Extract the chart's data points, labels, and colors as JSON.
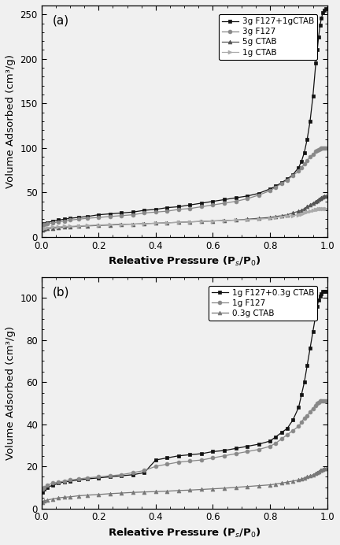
{
  "panel_a": {
    "label": "(a)",
    "ylabel": "Volume Adsorbed (cm³/g)",
    "xlabel": "Releative Pressure (P$_s$/P$_0$)",
    "ylim": [
      0,
      260
    ],
    "yticks": [
      0,
      50,
      100,
      150,
      200,
      250
    ],
    "xlim": [
      0.0,
      1.0
    ],
    "xticks": [
      0.0,
      0.2,
      0.4,
      0.6,
      0.8,
      1.0
    ],
    "series": [
      {
        "label": "3g F127+1gCTAB",
        "color": "#111111",
        "marker": "s",
        "markersize": 3.5,
        "linewidth": 0.9,
        "x": [
          0.005,
          0.01,
          0.02,
          0.04,
          0.06,
          0.08,
          0.1,
          0.13,
          0.16,
          0.2,
          0.24,
          0.28,
          0.32,
          0.36,
          0.4,
          0.44,
          0.48,
          0.52,
          0.56,
          0.6,
          0.64,
          0.68,
          0.72,
          0.76,
          0.8,
          0.82,
          0.84,
          0.86,
          0.88,
          0.9,
          0.91,
          0.92,
          0.93,
          0.94,
          0.95,
          0.96,
          0.965,
          0.97,
          0.975,
          0.98,
          0.985,
          0.99,
          0.995
        ],
        "y": [
          14,
          15,
          16,
          18,
          19,
          20,
          21,
          22,
          23,
          25,
          26,
          27,
          28,
          30,
          31,
          33,
          34,
          36,
          38,
          40,
          42,
          44,
          46,
          49,
          54,
          57,
          61,
          65,
          70,
          78,
          85,
          95,
          110,
          130,
          158,
          195,
          210,
          225,
          238,
          246,
          252,
          255,
          256
        ]
      },
      {
        "label": "3g F127",
        "color": "#888888",
        "marker": "o",
        "markersize": 3.5,
        "linewidth": 0.9,
        "x": [
          0.005,
          0.01,
          0.02,
          0.04,
          0.06,
          0.08,
          0.1,
          0.13,
          0.16,
          0.2,
          0.24,
          0.28,
          0.32,
          0.36,
          0.4,
          0.44,
          0.48,
          0.52,
          0.56,
          0.6,
          0.64,
          0.68,
          0.72,
          0.76,
          0.8,
          0.82,
          0.84,
          0.86,
          0.88,
          0.9,
          0.91,
          0.92,
          0.93,
          0.94,
          0.95,
          0.96,
          0.965,
          0.97,
          0.975,
          0.98,
          0.985,
          0.99,
          0.995
        ],
        "y": [
          13,
          14,
          15,
          16,
          17,
          18,
          19,
          20,
          21,
          22,
          23,
          24,
          25,
          27,
          28,
          29,
          31,
          32,
          34,
          36,
          38,
          40,
          43,
          47,
          52,
          56,
          60,
          64,
          69,
          74,
          78,
          82,
          86,
          90,
          93,
          96,
          97,
          98,
          99,
          100,
          100,
          100,
          100
        ]
      },
      {
        "label": "5g CTAB",
        "color": "#555555",
        "marker": "^",
        "markersize": 3.5,
        "linewidth": 0.9,
        "x": [
          0.005,
          0.01,
          0.02,
          0.04,
          0.06,
          0.08,
          0.1,
          0.13,
          0.16,
          0.2,
          0.24,
          0.28,
          0.32,
          0.36,
          0.4,
          0.44,
          0.48,
          0.52,
          0.56,
          0.6,
          0.64,
          0.68,
          0.72,
          0.76,
          0.8,
          0.82,
          0.84,
          0.86,
          0.88,
          0.9,
          0.91,
          0.92,
          0.93,
          0.94,
          0.95,
          0.96,
          0.965,
          0.97,
          0.975,
          0.98,
          0.985,
          0.99,
          0.995
        ],
        "y": [
          8,
          9,
          9.5,
          10,
          10.5,
          11,
          11.5,
          12,
          12.5,
          13,
          13.5,
          14,
          14.5,
          15,
          15.5,
          16,
          16.5,
          17,
          17.5,
          18,
          18.5,
          19,
          20,
          21,
          22,
          23,
          24,
          25,
          27,
          29,
          30,
          32,
          34,
          36,
          38,
          40,
          41,
          42,
          43,
          44,
          45,
          46,
          46
        ]
      },
      {
        "label": "1g CTAB",
        "color": "#aaaaaa",
        "marker": ">",
        "markersize": 3.5,
        "linewidth": 0.9,
        "x": [
          0.005,
          0.01,
          0.02,
          0.04,
          0.06,
          0.08,
          0.1,
          0.13,
          0.16,
          0.2,
          0.24,
          0.28,
          0.32,
          0.36,
          0.4,
          0.44,
          0.48,
          0.52,
          0.56,
          0.6,
          0.64,
          0.68,
          0.72,
          0.76,
          0.8,
          0.82,
          0.84,
          0.86,
          0.88,
          0.9,
          0.91,
          0.92,
          0.93,
          0.94,
          0.95,
          0.96,
          0.965,
          0.97,
          0.975,
          0.98,
          0.985,
          0.99,
          0.995
        ],
        "y": [
          9,
          10,
          10.5,
          11,
          11.5,
          12,
          12,
          12.5,
          13,
          13.5,
          14,
          14.5,
          14.5,
          15,
          15.5,
          16,
          16.5,
          17,
          17.5,
          18,
          18.5,
          19,
          19.5,
          20,
          21,
          22,
          23,
          23.5,
          24,
          25,
          26,
          27,
          28,
          29,
          30,
          30.5,
          31,
          31.5,
          31.5,
          32,
          32,
          32,
          32
        ]
      }
    ]
  },
  "panel_b": {
    "label": "(b)",
    "ylabel": "Volume Adsorbed (cm³/g)",
    "xlabel": "Releative Pressure (P$_s$/P$_0$)",
    "ylim": [
      0,
      110
    ],
    "yticks": [
      0,
      20,
      40,
      60,
      80,
      100
    ],
    "xlim": [
      0.0,
      1.0
    ],
    "xticks": [
      0.0,
      0.2,
      0.4,
      0.6,
      0.8,
      1.0
    ],
    "series": [
      {
        "label": "1g F127+0.3g CTAB",
        "color": "#111111",
        "marker": "s",
        "markersize": 3.5,
        "linewidth": 0.9,
        "x": [
          0.005,
          0.01,
          0.02,
          0.04,
          0.06,
          0.08,
          0.1,
          0.13,
          0.16,
          0.2,
          0.24,
          0.28,
          0.32,
          0.36,
          0.4,
          0.44,
          0.48,
          0.52,
          0.56,
          0.6,
          0.64,
          0.68,
          0.72,
          0.76,
          0.8,
          0.82,
          0.84,
          0.86,
          0.88,
          0.9,
          0.91,
          0.92,
          0.93,
          0.94,
          0.95,
          0.96,
          0.965,
          0.97,
          0.975,
          0.98,
          0.985,
          0.99,
          0.995
        ],
        "y": [
          7.5,
          9,
          10,
          11,
          12,
          12.5,
          13,
          13.5,
          14,
          14.5,
          15,
          15.5,
          16,
          17,
          23,
          24,
          25,
          25.5,
          26,
          27,
          27.5,
          28.5,
          29.5,
          30.5,
          32,
          34,
          36,
          38,
          42,
          48,
          54,
          60,
          68,
          76,
          84,
          92,
          96,
          99,
          101,
          102,
          103,
          103,
          103
        ]
      },
      {
        "label": "1g F127",
        "color": "#888888",
        "marker": "o",
        "markersize": 3.5,
        "linewidth": 0.9,
        "x": [
          0.005,
          0.01,
          0.02,
          0.04,
          0.06,
          0.08,
          0.1,
          0.13,
          0.16,
          0.2,
          0.24,
          0.28,
          0.32,
          0.36,
          0.4,
          0.44,
          0.48,
          0.52,
          0.56,
          0.6,
          0.64,
          0.68,
          0.72,
          0.76,
          0.8,
          0.82,
          0.84,
          0.86,
          0.88,
          0.9,
          0.91,
          0.92,
          0.93,
          0.94,
          0.95,
          0.96,
          0.965,
          0.97,
          0.975,
          0.98,
          0.985,
          0.99,
          0.995
        ],
        "y": [
          9,
          10,
          11,
          12,
          12.5,
          13,
          13.5,
          14,
          14.5,
          15,
          15.5,
          16,
          17,
          18,
          20,
          21,
          22,
          22.5,
          23,
          24,
          25,
          26,
          27,
          28,
          29.5,
          31,
          33,
          35,
          37,
          39,
          41,
          43,
          44,
          46,
          47.5,
          49,
          50,
          50.5,
          51,
          51,
          51,
          51,
          51
        ]
      },
      {
        "label": "0.3g CTAB",
        "color": "#777777",
        "marker": "^",
        "markersize": 3.5,
        "linewidth": 0.9,
        "x": [
          0.005,
          0.01,
          0.02,
          0.04,
          0.06,
          0.08,
          0.1,
          0.13,
          0.16,
          0.2,
          0.24,
          0.28,
          0.32,
          0.36,
          0.4,
          0.44,
          0.48,
          0.52,
          0.56,
          0.6,
          0.64,
          0.68,
          0.72,
          0.76,
          0.8,
          0.82,
          0.84,
          0.86,
          0.88,
          0.9,
          0.91,
          0.92,
          0.93,
          0.94,
          0.95,
          0.96,
          0.965,
          0.97,
          0.975,
          0.98,
          0.985,
          0.99,
          0.995
        ],
        "y": [
          3,
          3.5,
          4,
          4.5,
          5,
          5.3,
          5.5,
          6,
          6.3,
          6.6,
          7,
          7.3,
          7.6,
          7.8,
          8,
          8.2,
          8.5,
          8.7,
          9,
          9.3,
          9.6,
          10,
          10.4,
          10.8,
          11.2,
          11.6,
          12,
          12.5,
          13,
          13.5,
          14,
          14.5,
          15,
          15.5,
          16,
          16.8,
          17.2,
          17.6,
          18,
          18.3,
          18.5,
          18.8,
          19
        ]
      }
    ]
  },
  "background_color": "#f0f0f0",
  "fontsize_label": 9.5,
  "fontsize_tick": 8.5,
  "fontsize_legend": 7.5,
  "fontsize_panel_label": 11
}
